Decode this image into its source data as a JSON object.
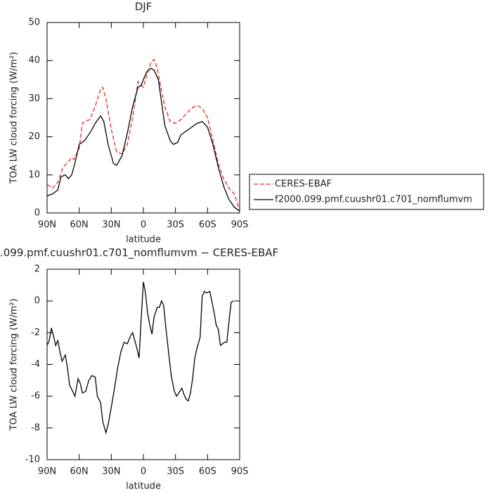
{
  "chart_data": [
    {
      "type": "line",
      "title": "DJF",
      "xlabel": "latitude",
      "ylabel": "TOA LW cloud forcing (W/m²)",
      "xlim": [
        90,
        -90
      ],
      "ylim": [
        0,
        50
      ],
      "xticks": [
        {
          "value": 90,
          "label": "90N"
        },
        {
          "value": 60,
          "label": "60N"
        },
        {
          "value": 30,
          "label": "30N"
        },
        0,
        {
          "value": -30,
          "label": "30S"
        },
        {
          "value": -60,
          "label": "60S"
        },
        {
          "value": -90,
          "label": "90S"
        }
      ],
      "yticks": [
        0,
        10,
        20,
        30,
        40,
        50
      ],
      "legend": "right",
      "series": [
        {
          "name": "CERES-EBAF",
          "color": "#e8262a",
          "line_style": "dashed",
          "x": [
            90,
            85,
            80,
            75,
            70,
            67,
            65,
            60,
            57,
            55,
            50,
            45,
            40,
            38,
            35,
            30,
            25,
            20,
            15,
            10,
            5,
            2,
            0,
            -3,
            -7,
            -10,
            -13,
            -17,
            -20,
            -25,
            -30,
            -35,
            -40,
            -45,
            -50,
            -55,
            -60,
            -65,
            -70,
            -75,
            -80,
            -85,
            -90
          ],
          "values": [
            7.5,
            6.5,
            8,
            12,
            13.5,
            14.5,
            14,
            17,
            23.5,
            24,
            24.5,
            28,
            32.5,
            33,
            30,
            22,
            16,
            15.5,
            18,
            25,
            34.5,
            33.5,
            33,
            36,
            39.5,
            40.3,
            38,
            32,
            28,
            24,
            23.5,
            24.5,
            26,
            27.5,
            28.2,
            27.5,
            25,
            19,
            13,
            9,
            6.5,
            5,
            0.5
          ]
        },
        {
          "name": "f2000.099.pmf.cuushr01.c701_nomflumvm",
          "color": "#000000",
          "line_style": "solid",
          "x": [
            90,
            85,
            80,
            77,
            73,
            70,
            67,
            64,
            60,
            55,
            50,
            45,
            40,
            37,
            33,
            28,
            25,
            20,
            15,
            10,
            5,
            2,
            0,
            -3,
            -7,
            -10,
            -14,
            -17,
            -20,
            -25,
            -28,
            -32,
            -35,
            -40,
            -45,
            -50,
            -55,
            -60,
            -65,
            -70,
            -75,
            -80,
            -85,
            -90
          ],
          "values": [
            4.5,
            5,
            6,
            9.5,
            10,
            9,
            10,
            13,
            18,
            19,
            21,
            23.5,
            25.5,
            24,
            18,
            13,
            12.5,
            15,
            21,
            28,
            33,
            33.5,
            35,
            37,
            38,
            37.5,
            35,
            29,
            23,
            19,
            18,
            18.5,
            20.5,
            21.5,
            22.5,
            23.5,
            24,
            22.5,
            18,
            12,
            7,
            3.5,
            1.5,
            0.5
          ]
        }
      ]
    },
    {
      "type": "line",
      "title": ".099.pmf.cuushr01.c701_nomflumvm − CERES-EBAF",
      "xlabel": "latitude",
      "ylabel": "TOA LW cloud forcing (W/m²)",
      "xlim": [
        90,
        -90
      ],
      "ylim": [
        -10,
        2
      ],
      "xticks": [
        {
          "value": 90,
          "label": "90N"
        },
        {
          "value": 60,
          "label": "60N"
        },
        {
          "value": 30,
          "label": "30N"
        },
        0,
        {
          "value": -30,
          "label": "30S"
        },
        {
          "value": -60,
          "label": "60S"
        },
        {
          "value": -90,
          "label": "90S"
        }
      ],
      "yticks": [
        -10,
        -8,
        -6,
        -4,
        -2,
        0,
        2
      ],
      "series": [
        {
          "name": null,
          "color": "#000000",
          "line_style": "solid",
          "x": [
            90,
            88,
            86,
            84,
            82,
            80,
            78,
            76,
            73,
            71,
            69,
            66,
            64,
            61,
            59,
            57,
            54,
            51,
            48,
            45,
            43,
            40,
            38,
            35,
            33,
            30,
            27,
            24,
            21,
            18,
            15,
            12,
            10,
            8,
            6,
            4,
            2,
            0,
            -2,
            -4,
            -6,
            -8,
            -10,
            -13,
            -15,
            -17,
            -19,
            -21,
            -24,
            -26,
            -29,
            -31,
            -34,
            -36,
            -38,
            -40,
            -42,
            -44,
            -46,
            -48,
            -50,
            -53,
            -55,
            -57,
            -59,
            -62,
            -64,
            -66,
            -68,
            -70,
            -72,
            -74,
            -76,
            -78,
            -80,
            -82,
            -84
          ],
          "values": [
            -2.8,
            -2.5,
            -1.7,
            -2.2,
            -2.8,
            -2.5,
            -3.2,
            -3.8,
            -3.4,
            -4.2,
            -5.3,
            -5.7,
            -6.0,
            -4.9,
            -5.2,
            -5.8,
            -5.7,
            -5.0,
            -4.7,
            -4.8,
            -6.0,
            -6.4,
            -7.6,
            -8.3,
            -7.8,
            -6.7,
            -5.5,
            -4.2,
            -3.2,
            -2.6,
            -2.7,
            -2.2,
            -2.0,
            -2.5,
            -3.0,
            -3.6,
            -1.0,
            1.2,
            0.5,
            -0.8,
            -1.5,
            -2.1,
            -1.0,
            -0.4,
            -0.4,
            0.0,
            -0.3,
            -1.7,
            -3.5,
            -4.7,
            -5.7,
            -6.0,
            -5.7,
            -5.5,
            -5.9,
            -6.2,
            -6.3,
            -5.8,
            -4.9,
            -3.6,
            -3.0,
            -2.3,
            0.3,
            0.6,
            0.5,
            0.6,
            0.0,
            -0.7,
            -1.5,
            -1.8,
            -2.8,
            -2.7,
            -2.6,
            -2.6,
            -1.3,
            -0.1,
            0.0
          ]
        }
      ]
    }
  ]
}
